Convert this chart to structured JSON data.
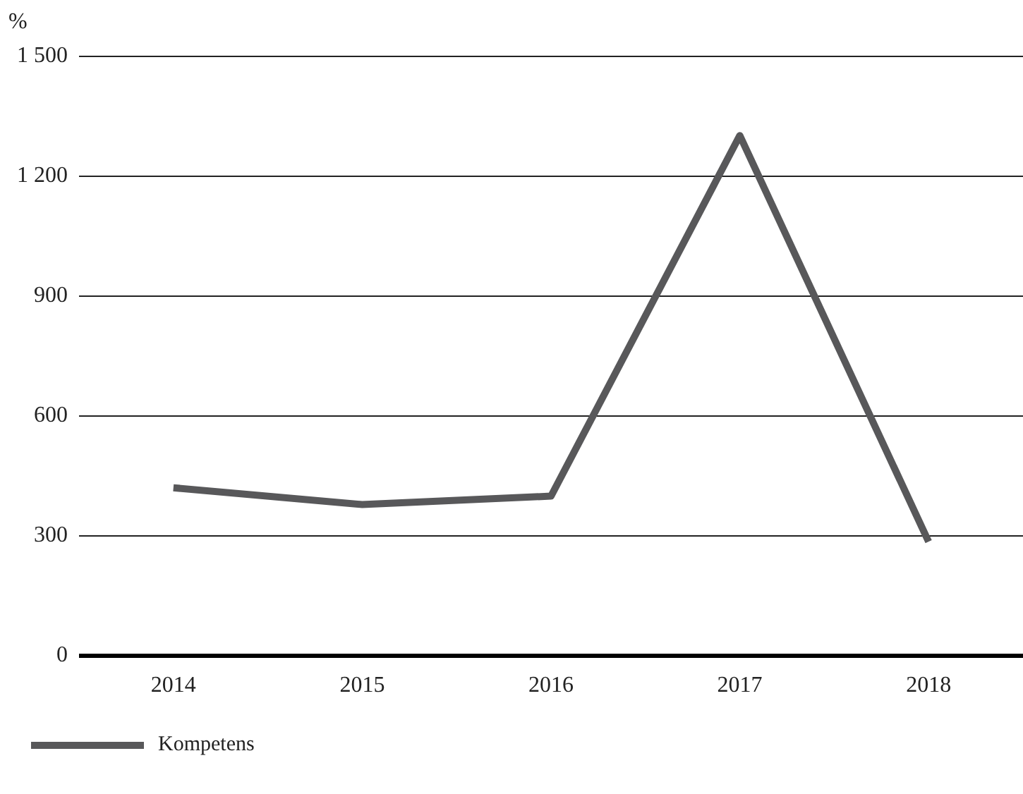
{
  "chart_data": {
    "type": "line",
    "ylabel": "%",
    "categories": [
      "2014",
      "2015",
      "2016",
      "2017",
      "2018"
    ],
    "series": [
      {
        "name": "Kompetens",
        "color": "#58585a",
        "values": [
          420,
          378,
          399,
          1302,
          285
        ]
      }
    ],
    "ylim": [
      0,
      1500
    ],
    "yticks": [
      0,
      {
        "value": 300,
        "label": "300"
      },
      600,
      900,
      {
        "value": 1200,
        "label": "1 200"
      },
      {
        "value": 1500,
        "label": "1 500"
      }
    ],
    "grid": "y",
    "legend": "bottom left",
    "marker": "none",
    "line_style": "solid"
  }
}
